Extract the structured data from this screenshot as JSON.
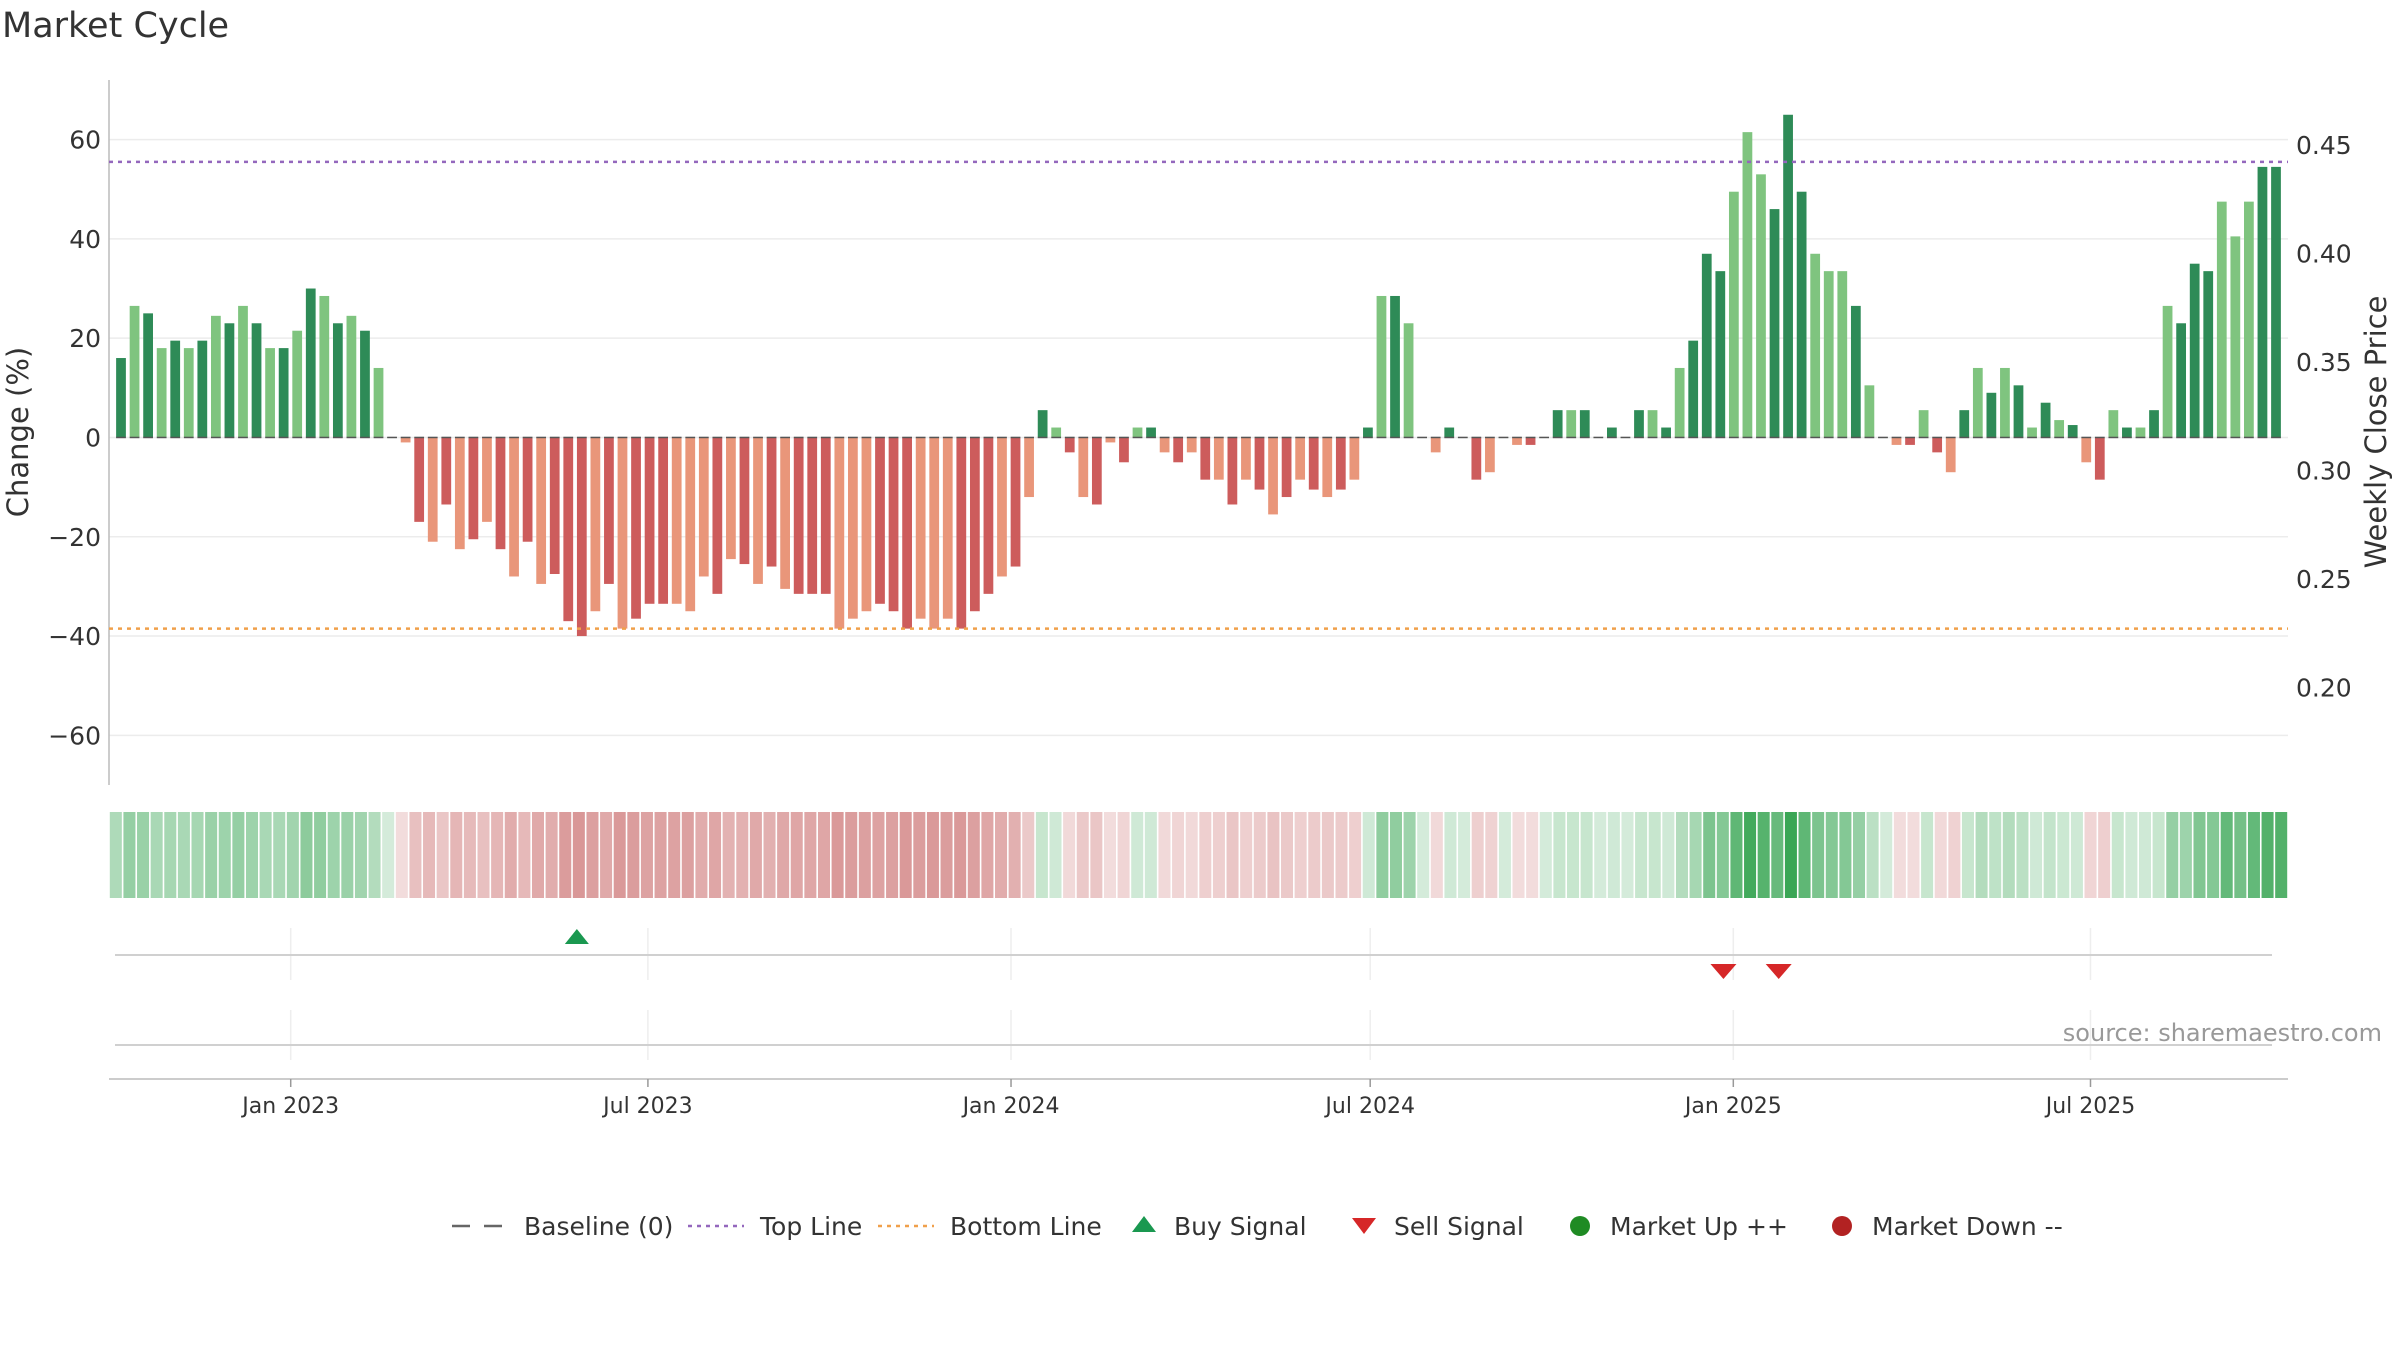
{
  "title": "Market Cycle",
  "source": "source: sharemaestro.com",
  "colors": {
    "up_strong": "#2e8b57",
    "up_light": "#7fc47f",
    "down_strong": "#cd5c5c",
    "down_light": "#e9967a",
    "top_line": "#9467bd",
    "bottom_line": "#f0a04b",
    "buy": "#1a9850",
    "sell": "#d62728",
    "market_up": "#1f8b24",
    "market_down": "#b22222"
  },
  "chart_data": {
    "type": "bar",
    "x_start": "2022-10-07",
    "x_end": "2025-10-03",
    "x_step_days": 7,
    "x_ticks": [
      {
        "date": "2023-01-01",
        "label": "Jan 2023"
      },
      {
        "date": "2023-07-01",
        "label": "Jul 2023"
      },
      {
        "date": "2024-01-01",
        "label": "Jan 2024"
      },
      {
        "date": "2024-07-01",
        "label": "Jul 2024"
      },
      {
        "date": "2025-01-01",
        "label": "Jan 2025"
      },
      {
        "date": "2025-07-01",
        "label": "Jul 2025"
      }
    ],
    "ylabel": "Change (%)",
    "ylim": [
      -70,
      72
    ],
    "yticks": [
      -60,
      -40,
      -20,
      0,
      20,
      40,
      60
    ],
    "y2label": "Weekly Close Price",
    "y2ticks": [
      "0.20",
      "0.25",
      "0.30",
      "0.35",
      "0.40",
      "0.45"
    ],
    "y2lim": [
      0.155,
      0.48
    ],
    "top_line": 55.5,
    "bottom_line": -38.5,
    "values": [
      16,
      26.5,
      25,
      18,
      19.5,
      18,
      19.5,
      24.5,
      23,
      26.5,
      23,
      18,
      18,
      21.5,
      30,
      28.5,
      23,
      24.5,
      21.5,
      14,
      0,
      -1,
      -17,
      -21,
      -13.5,
      -22.5,
      -20.5,
      -17,
      -22.5,
      -28,
      -21,
      -29.5,
      -27.5,
      -37,
      -40,
      -35,
      -29.5,
      -38.5,
      -36.5,
      -33.5,
      -33.5,
      -33.5,
      -35,
      -28,
      -31.5,
      -24.5,
      -25.5,
      -29.5,
      -26,
      -30.5,
      -31.5,
      -31.5,
      -31.5,
      -38.5,
      -36.5,
      -35,
      -33.5,
      -35,
      -38.5,
      -36.5,
      -38.5,
      -36.5,
      -38.5,
      -35,
      -31.5,
      -28,
      -26,
      -12,
      5.5,
      2,
      -3,
      -12,
      -13.5,
      -1,
      -5,
      2,
      2,
      -3,
      -5,
      -3,
      -8.5,
      -8.5,
      -13.5,
      -8.5,
      -10.5,
      -15.5,
      -12,
      -8.5,
      -10.5,
      -12,
      -10.5,
      -8.5,
      2,
      28.5,
      28.5,
      23,
      0,
      -3,
      2,
      0,
      -8.5,
      -7,
      0,
      -1.5,
      -1.5,
      0,
      5.5,
      5.5,
      5.5,
      0,
      2,
      0,
      5.5,
      5.5,
      2,
      14,
      19.5,
      37,
      33.5,
      49.5,
      61.5,
      53,
      46,
      65,
      49.5,
      37,
      33.5,
      33.5,
      26.5,
      10.5,
      0,
      -1.5,
      -1.5,
      5.5,
      -3,
      -7,
      5.5,
      14,
      9,
      14,
      10.5,
      2,
      7,
      3.5,
      2.5,
      -5,
      -8.5,
      5.5,
      2,
      2,
      5.5,
      26.5,
      23,
      35,
      33.5,
      47.5,
      40.5,
      47.5,
      54.5,
      54.5
    ],
    "baseline": 0,
    "signals": [
      {
        "type": "buy",
        "date": "2023-05-26"
      },
      {
        "type": "sell",
        "date": "2024-12-27"
      },
      {
        "type": "sell",
        "date": "2025-01-24"
      }
    ],
    "legend": [
      {
        "key": "baseline",
        "label": "Baseline (0)"
      },
      {
        "key": "top",
        "label": "Top Line"
      },
      {
        "key": "bottom",
        "label": "Bottom Line"
      },
      {
        "key": "buy",
        "label": "Buy Signal"
      },
      {
        "key": "sell",
        "label": "Sell Signal"
      },
      {
        "key": "up",
        "label": "Market Up ++"
      },
      {
        "key": "down",
        "label": "Market Down --"
      }
    ],
    "legend_position": "bottom-center"
  }
}
